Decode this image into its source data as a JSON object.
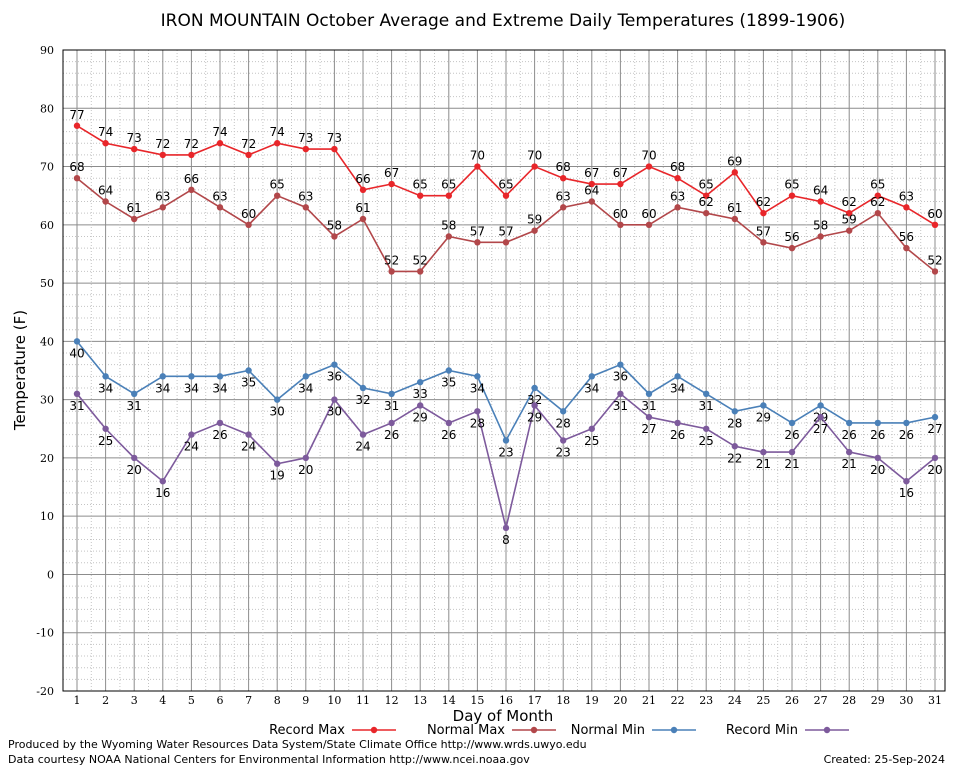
{
  "chart_data": {
    "type": "line",
    "title": "IRON MOUNTAIN October Average and Extreme Daily Temperatures (1899-1906)",
    "xlabel": "Day of Month",
    "ylabel": "Temperature (F)",
    "ylim": [
      -20,
      90
    ],
    "yticks": [
      "90",
      "80",
      "70",
      "60",
      "50",
      "40",
      "30",
      "20",
      "10",
      "0",
      "-10",
      "-20"
    ],
    "x": [
      1,
      2,
      3,
      4,
      5,
      6,
      7,
      8,
      9,
      10,
      11,
      12,
      13,
      14,
      15,
      16,
      17,
      18,
      19,
      20,
      21,
      22,
      23,
      24,
      25,
      26,
      27,
      28,
      29,
      30,
      31
    ],
    "grid": true,
    "series": [
      {
        "name": "Record Max",
        "color": "#e8262a",
        "values": [
          77,
          74,
          73,
          72,
          72,
          74,
          72,
          74,
          73,
          73,
          66,
          67,
          65,
          65,
          70,
          65,
          70,
          68,
          67,
          67,
          70,
          68,
          65,
          69,
          62,
          65,
          64,
          62,
          65,
          63,
          60
        ]
      },
      {
        "name": "Normal Max",
        "color": "#b2474a",
        "values": [
          68,
          64,
          61,
          63,
          66,
          63,
          60,
          65,
          63,
          58,
          61,
          52,
          52,
          58,
          57,
          57,
          59,
          63,
          64,
          60,
          60,
          63,
          62,
          61,
          57,
          56,
          58,
          59,
          62,
          56,
          52
        ]
      },
      {
        "name": "Normal Min",
        "color": "#4a80b8",
        "values": [
          40,
          34,
          31,
          34,
          34,
          34,
          35,
          30,
          34,
          36,
          32,
          31,
          33,
          35,
          34,
          23,
          32,
          28,
          34,
          36,
          31,
          34,
          31,
          28,
          29,
          26,
          29,
          26,
          26,
          26,
          27
        ]
      },
      {
        "name": "Record Min",
        "color": "#7d5a9c",
        "values": [
          31,
          25,
          20,
          16,
          24,
          26,
          24,
          19,
          20,
          30,
          24,
          26,
          29,
          26,
          28,
          8,
          29,
          23,
          25,
          31,
          27,
          26,
          25,
          22,
          21,
          21,
          27,
          21,
          20,
          16,
          20
        ]
      }
    ]
  },
  "footer": {
    "line1": "Produced by the Wyoming Water Resources Data System/State Climate Office http://www.wrds.uwyo.edu",
    "line2": "Data courtesy NOAA National Centers for Environmental Information http://www.ncei.noaa.gov",
    "created": "Created:  25-Sep-2024"
  }
}
